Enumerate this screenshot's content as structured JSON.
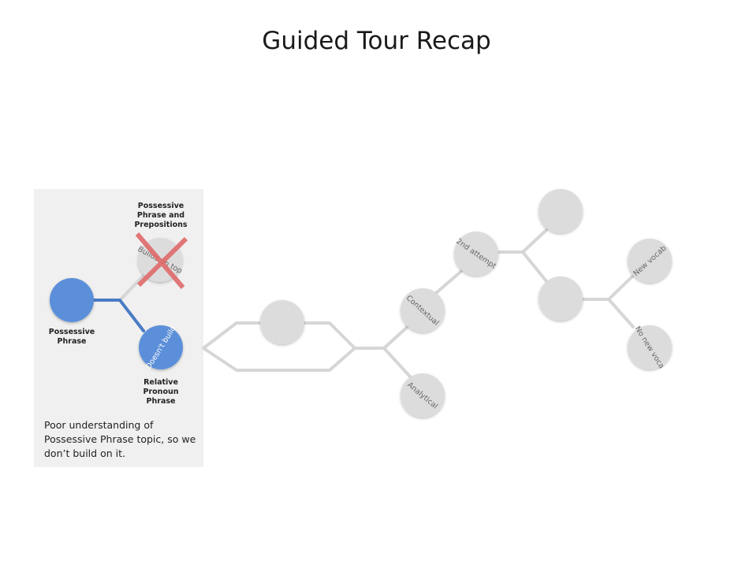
{
  "title": "Guided Tour Recap",
  "labels": {
    "possessive_phrase": "Possessive Phrase",
    "possessive_prepositions": "Possessive Phrase and Prepositions",
    "relative_pronoun": "Relative Pronoun Phrase"
  },
  "node_text": {
    "builds_on_top": "Builds on top",
    "doesnt_build": "Doesn't build",
    "contextual": "Contextual",
    "analytical": "Analytical",
    "second_attempt": "2nd attempt",
    "new_vocab": "New vocab",
    "no_new_vocab": "No new voca"
  },
  "note": "Poor understanding of Possessive Phrase topic, so we don’t build on it.",
  "colors": {
    "active_node": "#5b8fd9",
    "inactive_node": "#dcdcdc",
    "connector": "#d6d6d6",
    "active_connector": "#4a7cc4",
    "cross": "#e06a6a",
    "panel": "#f0f0f0"
  }
}
